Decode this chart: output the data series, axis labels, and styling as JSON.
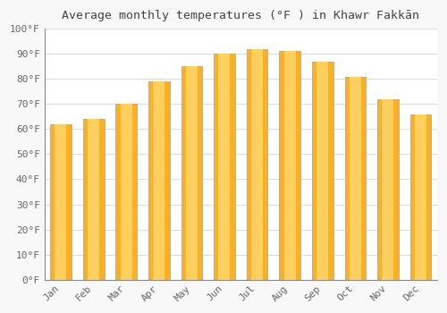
{
  "months": [
    "Jan",
    "Feb",
    "Mar",
    "Apr",
    "May",
    "Jun",
    "Jul",
    "Aug",
    "Sep",
    "Oct",
    "Nov",
    "Dec"
  ],
  "values": [
    62,
    64,
    70,
    79,
    85,
    90,
    92,
    91,
    87,
    81,
    72,
    66
  ],
  "bar_color_main": "#FFB020",
  "bar_color_light": "#FFD060",
  "bar_color_edge": "#E09000",
  "bar_edge_color": "#AAAAAA",
  "title": "Average monthly temperatures (°F ) in Khawr Fakkān",
  "ylim": [
    0,
    100
  ],
  "ytick_step": 10,
  "background_color": "#F8F8F8",
  "plot_bg_color": "#FFFFFF",
  "grid_color": "#DDDDDD",
  "title_fontsize": 9.5,
  "tick_fontsize": 8,
  "label_color": "#666666"
}
